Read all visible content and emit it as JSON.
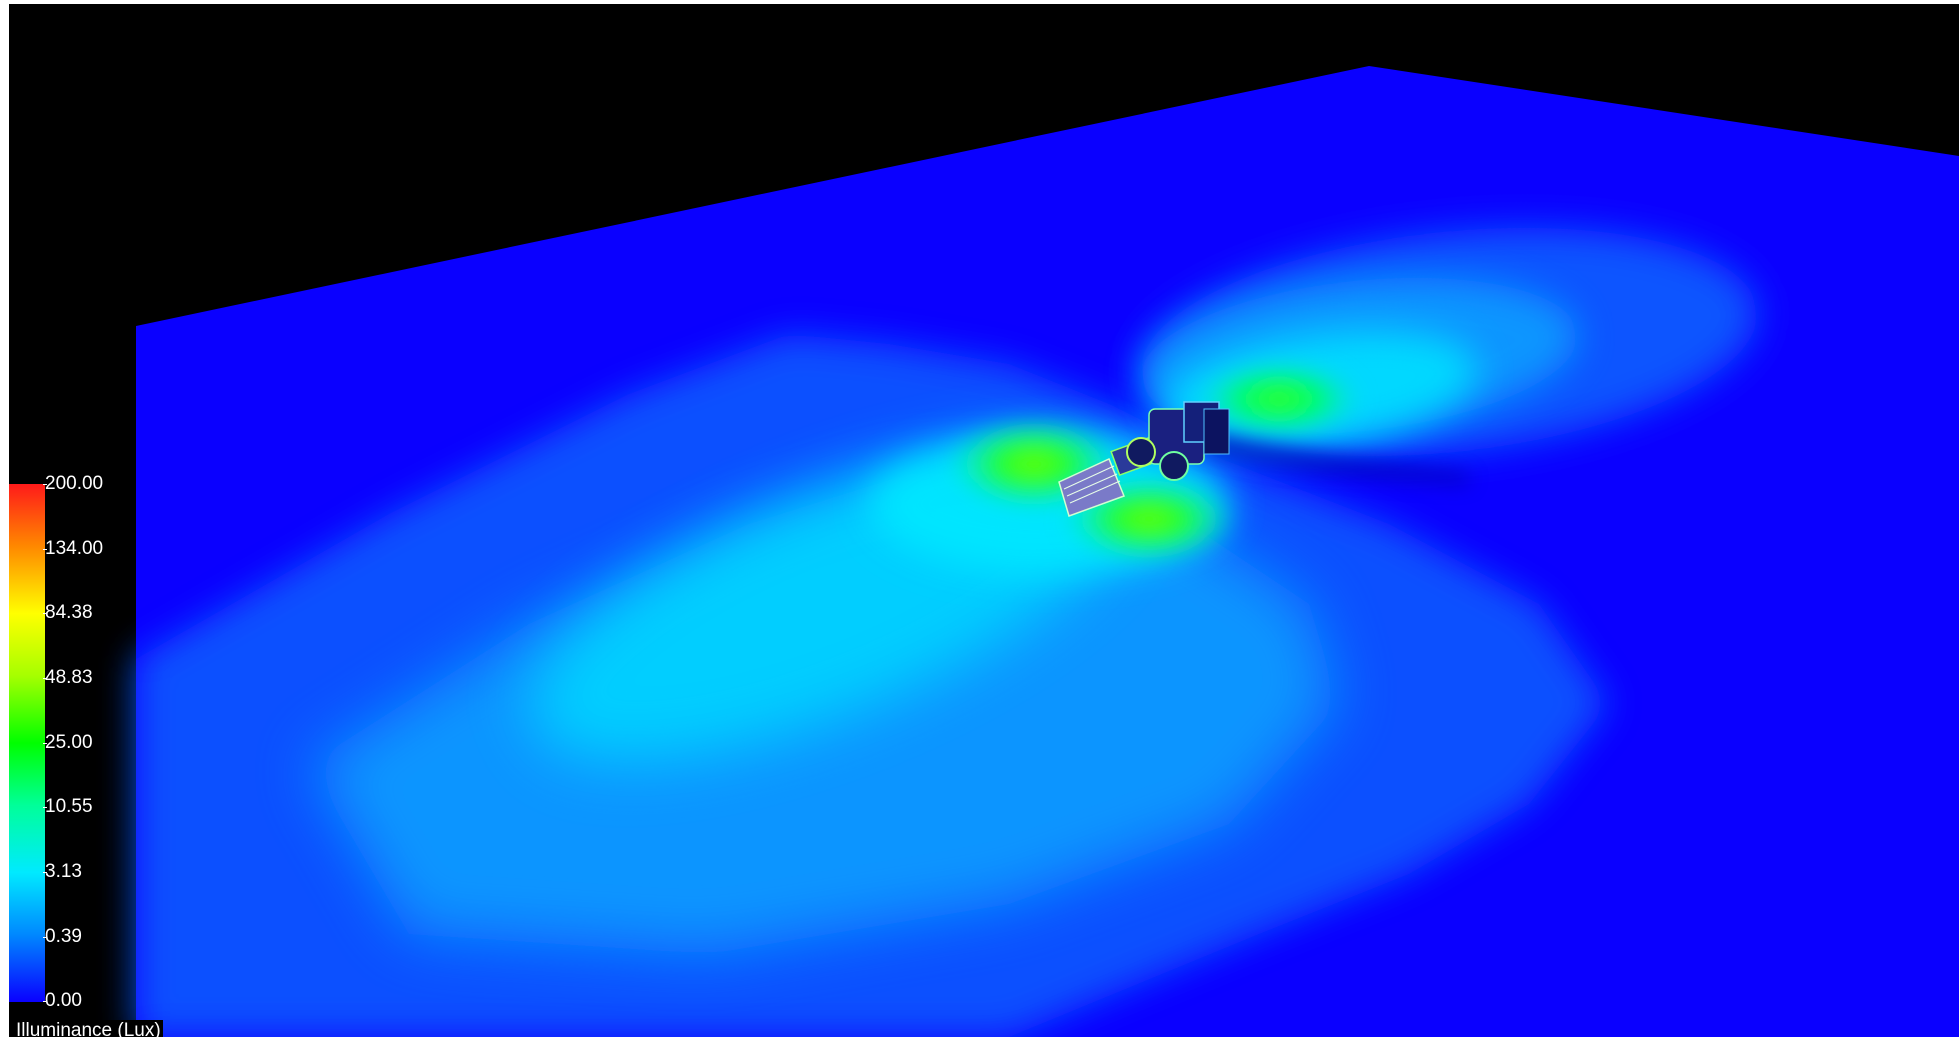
{
  "legend": {
    "title": "Illuminance (Lux)",
    "scale_labels": [
      "200.00",
      "134.00",
      "84.38",
      "48.83",
      "25.00",
      "10.55",
      "3.13",
      "0.39",
      "0.00"
    ],
    "max_color": "#ff1a1a",
    "min_color": "#0a00ff"
  },
  "scene": {
    "background_color": "#000000",
    "ground_color": "#0a00ff",
    "object_icon": "wheel-loader-icon"
  }
}
